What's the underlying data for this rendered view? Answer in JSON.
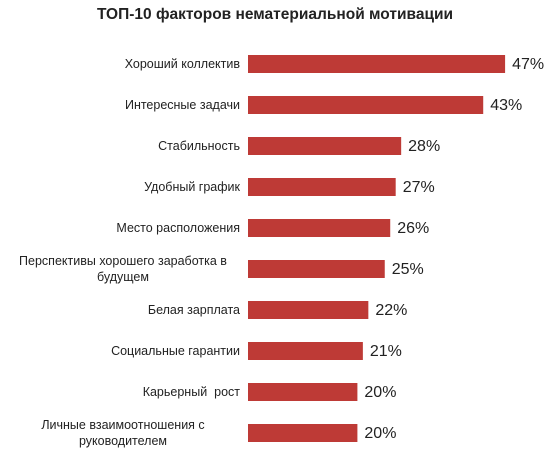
{
  "chart_data": {
    "type": "bar",
    "orientation": "horizontal",
    "title": "ТОП-10 факторов нематериальной мотивации",
    "categories": [
      "Хороший коллектив",
      "Интересные задачи",
      "Стабильность",
      "Удобный график",
      "Место расположения",
      "Перспективы хорошего заработка в будущем",
      "Белая зарплата",
      "Социальные гарантии",
      "Карьерный  рост",
      "Личные взаимоотношения с руководителем"
    ],
    "values": [
      47,
      43,
      28,
      27,
      26,
      25,
      22,
      21,
      20,
      20
    ],
    "value_labels": [
      "47%",
      "43%",
      "28%",
      "27%",
      "26%",
      "25%",
      "22%",
      "21%",
      "20%",
      "20%"
    ],
    "color": "#be3a36"
  }
}
